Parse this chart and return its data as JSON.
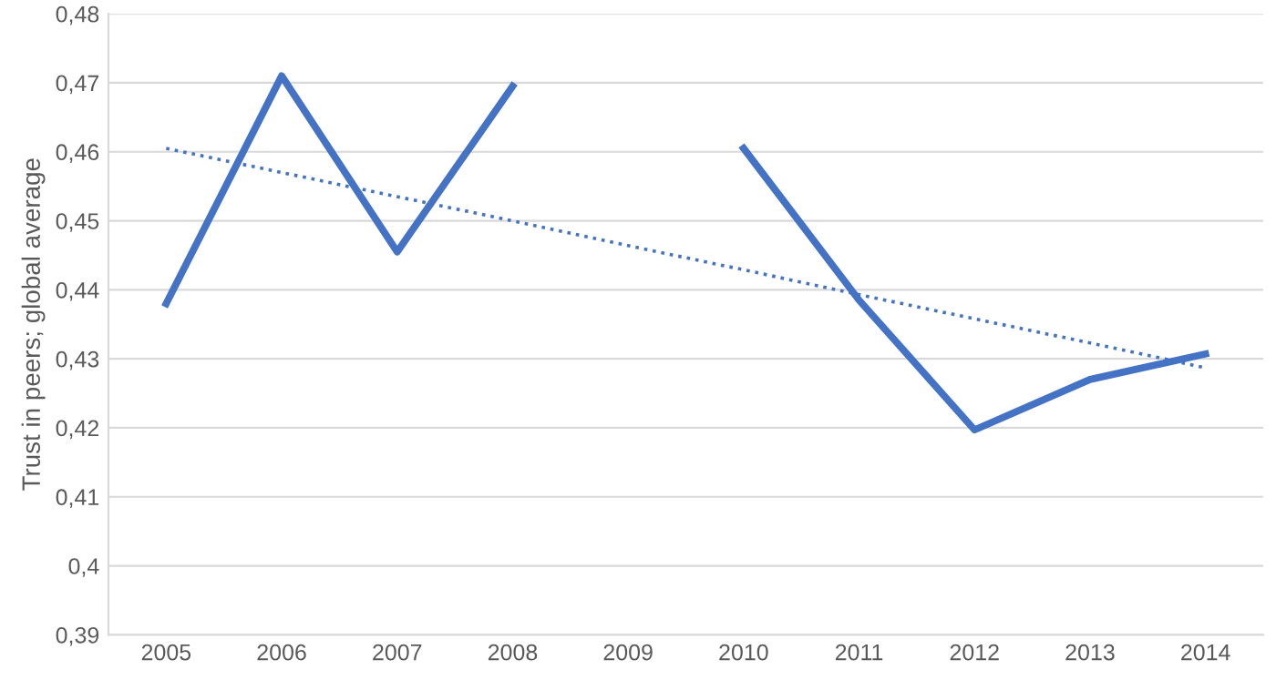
{
  "chart_data": {
    "type": "line",
    "ylabel": "Trust in peers; global average",
    "categories": [
      "2005",
      "2006",
      "2007",
      "2008",
      "2009",
      "2010",
      "2011",
      "2012",
      "2013",
      "2014"
    ],
    "series": [
      {
        "color": "#4472c4",
        "values": [
          0.438,
          0.471,
          0.4455,
          0.4695,
          null,
          0.4605,
          0.4385,
          0.4197,
          0.427,
          0.4307
        ],
        "line_style": "solid"
      },
      {
        "type": "line",
        "color": "#4472c4",
        "values": [
          0.4605,
          0.457,
          0.4535,
          0.45,
          0.4464,
          0.4429,
          0.4393,
          0.4358,
          0.4323,
          0.4287
        ],
        "line_style": "dotted"
      }
    ],
    "ylim": [
      0.39,
      0.48
    ],
    "yticks": [
      {
        "value": 0.39,
        "label": "0,39"
      },
      {
        "value": 0.4,
        "label": "0,4"
      },
      {
        "value": 0.41,
        "label": "0,41"
      },
      {
        "value": 0.42,
        "label": "0,42"
      },
      {
        "value": 0.43,
        "label": "0,43"
      },
      {
        "value": 0.44,
        "label": "0,44"
      },
      {
        "value": 0.45,
        "label": "0,45"
      },
      {
        "value": 0.46,
        "label": "0,46"
      },
      {
        "value": 0.47,
        "label": "0,47"
      },
      {
        "value": 0.48,
        "label": "0,48"
      }
    ],
    "grid": "y",
    "marker": "none"
  }
}
